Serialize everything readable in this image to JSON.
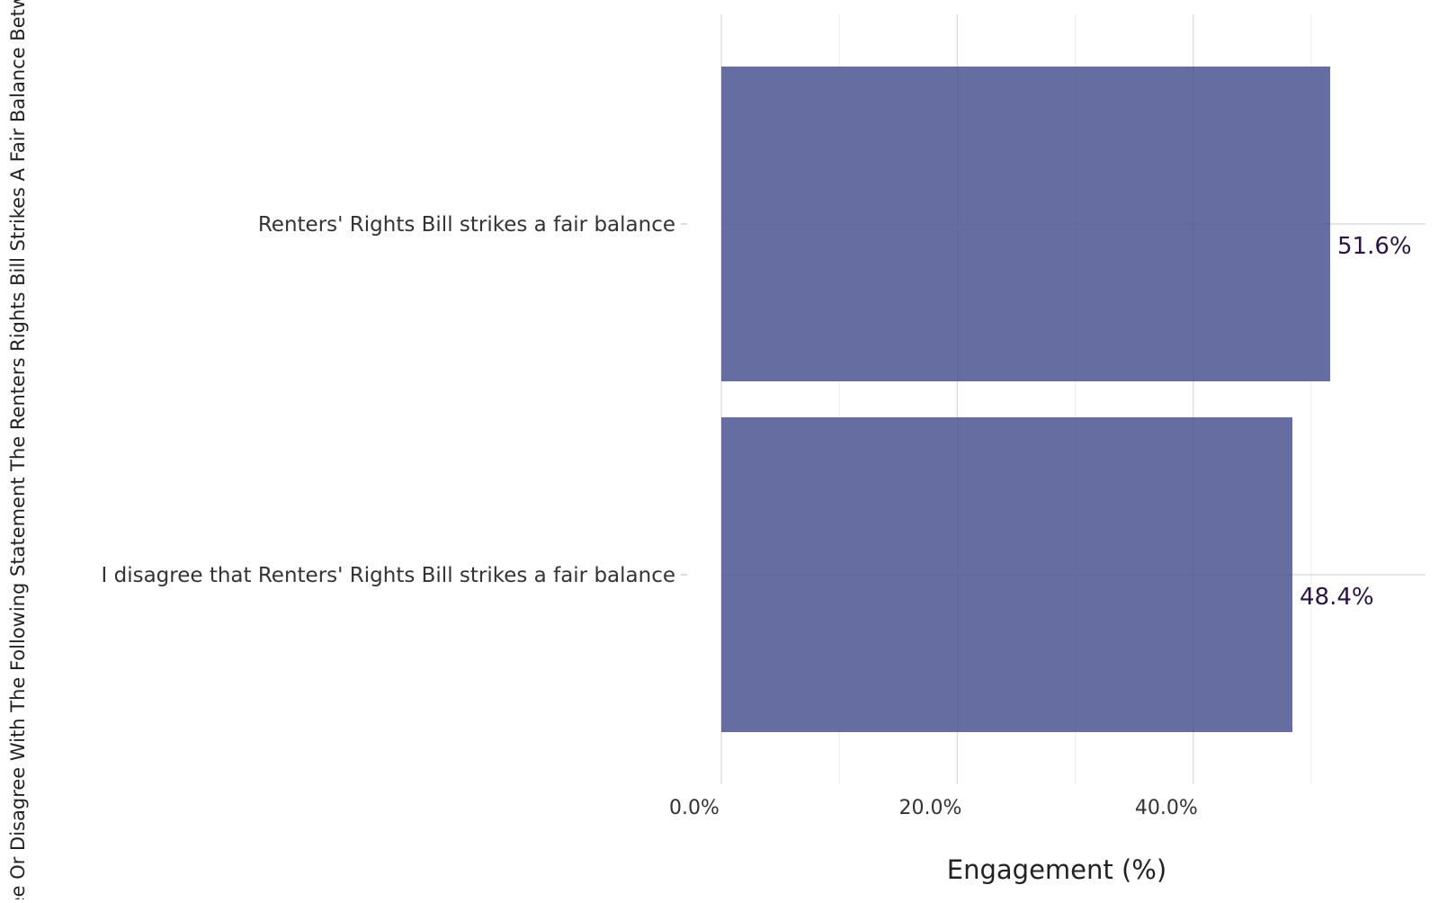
{
  "chart_data": {
    "type": "bar",
    "orientation": "horizontal",
    "categories": [
      "Renters' Rights Bill strikes a fair balance",
      "I disagree that Renters' Rights Bill strikes a fair balance"
    ],
    "values": [
      51.6,
      48.4
    ],
    "data_labels": [
      "51.6%",
      "48.4%"
    ],
    "xlabel": "Engagement (%)",
    "ylabel": "Agree Or Disagree With The Following Statement The Renters Rights Bill Strikes A Fair Balance Between",
    "xlim": [
      0,
      60
    ],
    "x_ticks": [
      0,
      20,
      40
    ],
    "x_tick_labels": [
      "0.0%",
      "20.0%",
      "40.0%"
    ],
    "grid": true,
    "legend": "none",
    "bar_color": "#4a5490",
    "label_color": "#2a1245"
  }
}
